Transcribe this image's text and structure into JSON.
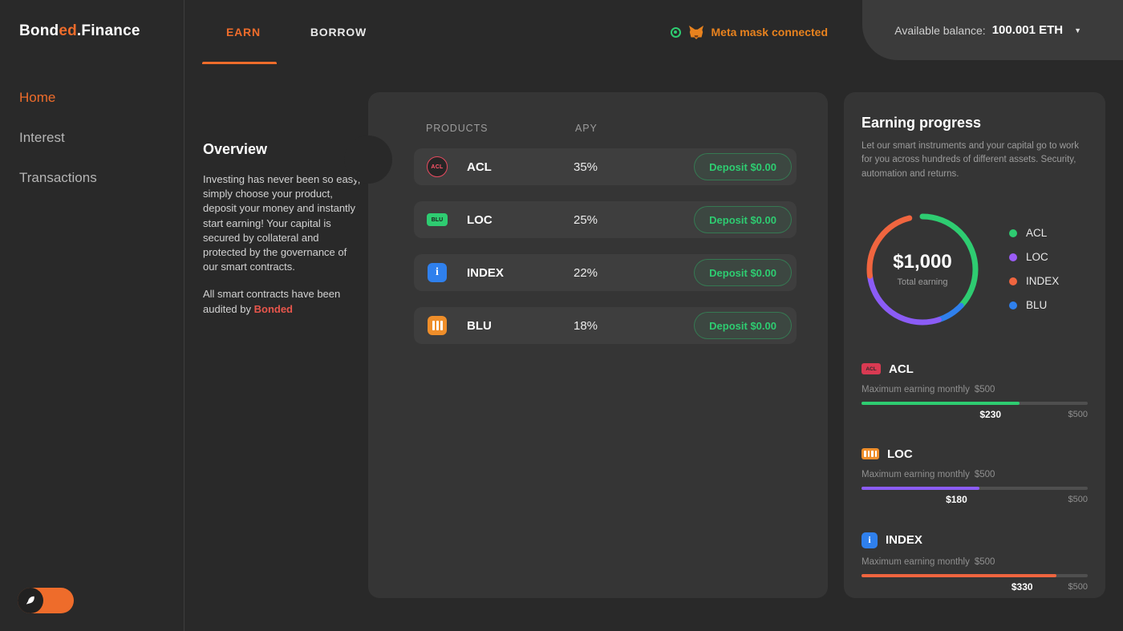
{
  "brand": {
    "prefix": "Bond",
    "accent": "ed",
    "suffix": ".Finance"
  },
  "sidebar": {
    "items": [
      {
        "label": "Home"
      },
      {
        "label": "Interest"
      },
      {
        "label": "Transactions"
      }
    ]
  },
  "topbar": {
    "tabs": [
      {
        "label": "EARN"
      },
      {
        "label": "BORROW"
      }
    ],
    "wallet_status": "Meta mask connected",
    "balance_label": "Available balance:",
    "balance_value": "100.001 ETH"
  },
  "overview": {
    "title": "Overview",
    "body": "Investing has never been so easy, simply choose your product, deposit your money and instantly start earning! Your capital is secured by collateral and protected by the governance of our smart contracts.",
    "audit_prefix": "All smart contracts have been audited by ",
    "audit_brand": "Bonded"
  },
  "products": {
    "col_products": "PRODUCTS",
    "col_apy": "APY",
    "rows": [
      {
        "badge": "ACL",
        "name": "ACL",
        "apy": "35%",
        "button": "Deposit $0.00"
      },
      {
        "badge": "BLU",
        "name": "LOC",
        "apy": "25%",
        "button": "Deposit $0.00"
      },
      {
        "badge": "i",
        "name": "INDEX",
        "apy": "22%",
        "button": "Deposit $0.00"
      },
      {
        "badge": "",
        "name": "BLU",
        "apy": "18%",
        "button": "Deposit $0.00"
      }
    ]
  },
  "earning": {
    "title": "Earning progress",
    "subtitle": "Let our smart instruments and your capital go to work for you across hundreds of different assets. Security, automation and returns.",
    "total": "$1,000",
    "total_label": "Total earning",
    "legend": [
      {
        "label": "ACL",
        "color": "#2ecc71"
      },
      {
        "label": "LOC",
        "color": "#9b5cf6"
      },
      {
        "label": "INDEX",
        "color": "#f0653f"
      },
      {
        "label": "BLU",
        "color": "#2f80ed"
      }
    ],
    "donut_segments": [
      {
        "color": "#2ecc71",
        "pct": 37
      },
      {
        "color": "#2f80ed",
        "pct": 8
      },
      {
        "color": "#8b5cf6",
        "pct": 28
      },
      {
        "color": "#f0653f",
        "pct": 23
      }
    ],
    "progress": [
      {
        "name": "ACL",
        "badge": "ACL",
        "max_label": "Maximum earning monthly",
        "max_value": "$500",
        "value": "$230",
        "right_label": "$500",
        "pct": 70,
        "label_pct": 57,
        "color": "#2ecc71"
      },
      {
        "name": "LOC",
        "badge": "",
        "max_label": "Maximum earning monthly",
        "max_value": "$500",
        "value": "$180",
        "right_label": "$500",
        "pct": 52,
        "label_pct": 42,
        "color": "#8b5cf6"
      },
      {
        "name": "INDEX",
        "badge": "i",
        "max_label": "Maximum earning monthly",
        "max_value": "$500",
        "value": "$330",
        "right_label": "$500",
        "pct": 86,
        "label_pct": 71,
        "color": "#f0653f"
      }
    ]
  }
}
